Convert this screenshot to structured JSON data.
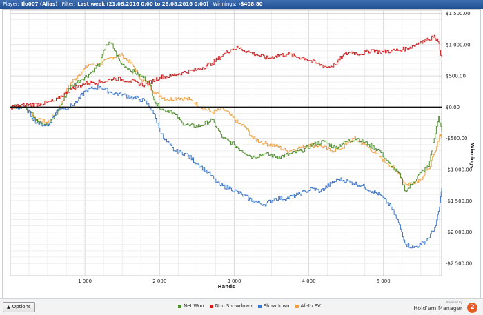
{
  "header": {
    "player_label": "Player:",
    "player_value": "Ilo007 (Alias)",
    "filter_label": "Filter:",
    "filter_value": "Last week (21.08.2016 0:00 to 28.08.2016 0:00)",
    "winnings_label": "Winnings:",
    "winnings_value": "-$408.80"
  },
  "bottom": {
    "options_label": "Options",
    "brand_powered": "Powered by",
    "brand_name": "Hold'em Manager",
    "brand_logo": "2"
  },
  "chart_data": {
    "type": "line",
    "title": "",
    "xlabel": "Hands",
    "ylabel": "Winnings",
    "xlim": [
      0,
      5780
    ],
    "ylim": [
      -2700,
      1550
    ],
    "x_ticks": [
      1000,
      2000,
      3000,
      4000,
      5000
    ],
    "x_tick_labels": [
      "1 000",
      "2 000",
      "3 000",
      "4 000",
      "5 000"
    ],
    "y_ticks": [
      1500,
      1000,
      500,
      0,
      -500,
      -1000,
      -1500,
      -2000,
      -2500
    ],
    "y_tick_labels": [
      "$1 500.00",
      "$1 000.00",
      "$500.00",
      "$0.00",
      "-$500.00",
      "-$1 000.00",
      "-$1 500.00",
      "-$2 000.00",
      "-$2 500.00"
    ],
    "grid": true,
    "y_axis_side": "right",
    "legend_position": "bottom",
    "series": [
      {
        "name": "Net Won",
        "color": "#4f8f2f",
        "points": [
          [
            0,
            0
          ],
          [
            200,
            20
          ],
          [
            350,
            -200
          ],
          [
            500,
            -300
          ],
          [
            650,
            -50
          ],
          [
            780,
            300
          ],
          [
            950,
            450
          ],
          [
            1050,
            520
          ],
          [
            1200,
            700
          ],
          [
            1280,
            1000
          ],
          [
            1350,
            1020
          ],
          [
            1480,
            700
          ],
          [
            1600,
            600
          ],
          [
            1750,
            500
          ],
          [
            1850,
            420
          ],
          [
            1950,
            50
          ],
          [
            2050,
            -50
          ],
          [
            2150,
            -60
          ],
          [
            2300,
            -250
          ],
          [
            2400,
            -300
          ],
          [
            2550,
            -300
          ],
          [
            2700,
            -200
          ],
          [
            2850,
            -500
          ],
          [
            3000,
            -600
          ],
          [
            3100,
            -700
          ],
          [
            3250,
            -800
          ],
          [
            3400,
            -750
          ],
          [
            3600,
            -800
          ],
          [
            3750,
            -750
          ],
          [
            3900,
            -700
          ],
          [
            4050,
            -600
          ],
          [
            4200,
            -550
          ],
          [
            4350,
            -650
          ],
          [
            4500,
            -550
          ],
          [
            4650,
            -500
          ],
          [
            4800,
            -600
          ],
          [
            4950,
            -700
          ],
          [
            5100,
            -950
          ],
          [
            5200,
            -1050
          ],
          [
            5300,
            -1350
          ],
          [
            5400,
            -1200
          ],
          [
            5500,
            -1050
          ],
          [
            5600,
            -950
          ],
          [
            5680,
            -500
          ],
          [
            5740,
            -150
          ],
          [
            5780,
            -400
          ]
        ]
      },
      {
        "name": "Non Showdown",
        "color": "#d01c1c",
        "points": [
          [
            0,
            0
          ],
          [
            200,
            30
          ],
          [
            400,
            50
          ],
          [
            600,
            100
          ],
          [
            800,
            280
          ],
          [
            1000,
            380
          ],
          [
            1100,
            400
          ],
          [
            1200,
            400
          ],
          [
            1400,
            460
          ],
          [
            1600,
            420
          ],
          [
            1800,
            350
          ],
          [
            2000,
            480
          ],
          [
            2150,
            500
          ],
          [
            2300,
            550
          ],
          [
            2500,
            600
          ],
          [
            2700,
            700
          ],
          [
            2850,
            840
          ],
          [
            2950,
            920
          ],
          [
            3050,
            950
          ],
          [
            3200,
            880
          ],
          [
            3300,
            840
          ],
          [
            3450,
            780
          ],
          [
            3550,
            820
          ],
          [
            3700,
            850
          ],
          [
            3850,
            800
          ],
          [
            3950,
            780
          ],
          [
            4100,
            700
          ],
          [
            4250,
            640
          ],
          [
            4350,
            680
          ],
          [
            4450,
            820
          ],
          [
            4550,
            880
          ],
          [
            4700,
            850
          ],
          [
            4850,
            920
          ],
          [
            4950,
            880
          ],
          [
            5100,
            900
          ],
          [
            5250,
            920
          ],
          [
            5400,
            980
          ],
          [
            5500,
            1050
          ],
          [
            5600,
            1080
          ],
          [
            5680,
            1150
          ],
          [
            5730,
            1050
          ],
          [
            5780,
            800
          ]
        ]
      },
      {
        "name": "Showdown",
        "color": "#3a76cc",
        "points": [
          [
            0,
            0
          ],
          [
            200,
            -10
          ],
          [
            350,
            -250
          ],
          [
            500,
            -300
          ],
          [
            650,
            -10
          ],
          [
            780,
            -10
          ],
          [
            900,
            100
          ],
          [
            1000,
            260
          ],
          [
            1100,
            300
          ],
          [
            1200,
            330
          ],
          [
            1350,
            230
          ],
          [
            1500,
            200
          ],
          [
            1650,
            150
          ],
          [
            1800,
            100
          ],
          [
            1900,
            -50
          ],
          [
            2050,
            -500
          ],
          [
            2200,
            -700
          ],
          [
            2350,
            -750
          ],
          [
            2500,
            -900
          ],
          [
            2650,
            -1050
          ],
          [
            2800,
            -1250
          ],
          [
            2950,
            -1300
          ],
          [
            3100,
            -1400
          ],
          [
            3250,
            -1500
          ],
          [
            3400,
            -1560
          ],
          [
            3550,
            -1460
          ],
          [
            3700,
            -1460
          ],
          [
            3850,
            -1400
          ],
          [
            3950,
            -1350
          ],
          [
            4050,
            -1300
          ],
          [
            4150,
            -1350
          ],
          [
            4300,
            -1220
          ],
          [
            4400,
            -1150
          ],
          [
            4550,
            -1200
          ],
          [
            4700,
            -1250
          ],
          [
            4850,
            -1350
          ],
          [
            4950,
            -1400
          ],
          [
            5100,
            -1600
          ],
          [
            5200,
            -1850
          ],
          [
            5300,
            -2200
          ],
          [
            5400,
            -2250
          ],
          [
            5500,
            -2200
          ],
          [
            5600,
            -2100
          ],
          [
            5700,
            -1900
          ],
          [
            5750,
            -1600
          ],
          [
            5780,
            -1300
          ]
        ]
      },
      {
        "name": "All-In EV",
        "color": "#f0a144",
        "points": [
          [
            0,
            0
          ],
          [
            200,
            10
          ],
          [
            350,
            -200
          ],
          [
            500,
            -250
          ],
          [
            650,
            -30
          ],
          [
            780,
            350
          ],
          [
            900,
            500
          ],
          [
            1050,
            680
          ],
          [
            1200,
            680
          ],
          [
            1350,
            800
          ],
          [
            1500,
            830
          ],
          [
            1650,
            650
          ],
          [
            1750,
            450
          ],
          [
            1850,
            350
          ],
          [
            1950,
            220
          ],
          [
            2100,
            120
          ],
          [
            2250,
            150
          ],
          [
            2400,
            120
          ],
          [
            2550,
            0
          ],
          [
            2700,
            -80
          ],
          [
            2850,
            -30
          ],
          [
            2950,
            -130
          ],
          [
            3050,
            -260
          ],
          [
            3150,
            -320
          ],
          [
            3250,
            -500
          ],
          [
            3400,
            -580
          ],
          [
            3550,
            -620
          ],
          [
            3700,
            -700
          ],
          [
            3850,
            -660
          ],
          [
            4000,
            -600
          ],
          [
            4150,
            -620
          ],
          [
            4300,
            -700
          ],
          [
            4450,
            -650
          ],
          [
            4600,
            -500
          ],
          [
            4750,
            -600
          ],
          [
            4900,
            -750
          ],
          [
            5050,
            -900
          ],
          [
            5200,
            -1050
          ],
          [
            5300,
            -1250
          ],
          [
            5400,
            -1200
          ],
          [
            5500,
            -1150
          ],
          [
            5600,
            -1000
          ],
          [
            5700,
            -700
          ],
          [
            5750,
            -450
          ],
          [
            5780,
            -450
          ]
        ]
      }
    ]
  }
}
